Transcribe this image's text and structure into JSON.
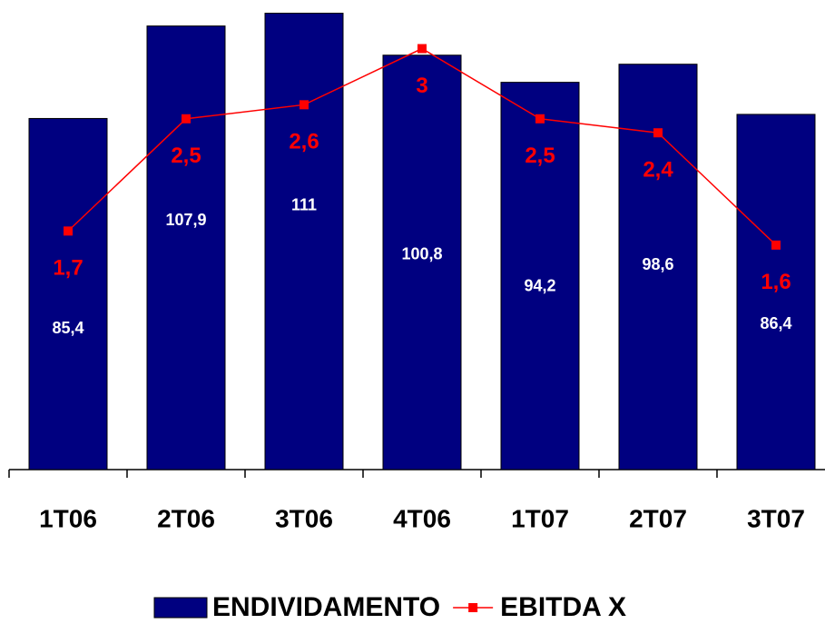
{
  "chart_data": {
    "type": "bar",
    "categories": [
      "1T06",
      "2T06",
      "3T06",
      "4T06",
      "1T07",
      "2T07",
      "3T07"
    ],
    "series": [
      {
        "name": "ENDIVIDAMENTO",
        "color": "#000080",
        "values": [
          85.4,
          107.9,
          111,
          100.8,
          94.2,
          98.6,
          86.4
        ],
        "value_labels": [
          "85,4",
          "107,9",
          "111",
          "100,8",
          "94,2",
          "98,6",
          "86,4"
        ]
      },
      {
        "name": "EBITDA X",
        "color": "#ff0000",
        "type": "line",
        "axis": "y2",
        "values": [
          1.7,
          2.5,
          2.6,
          3,
          2.5,
          2.4,
          1.6
        ],
        "value_labels": [
          "1,7",
          "2,5",
          "2,6",
          "3",
          "2,5",
          "2,4",
          "1,6"
        ]
      }
    ],
    "ylim": [
      0,
      114
    ],
    "y2lim": [
      0,
      3.34
    ],
    "legend": "bottom"
  }
}
